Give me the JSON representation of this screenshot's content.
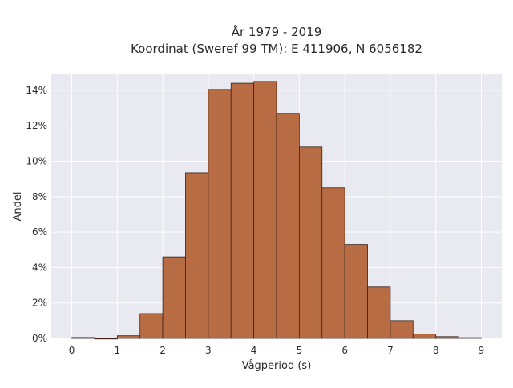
{
  "chart_data": {
    "type": "bar",
    "title": "År 1979 - 2019",
    "subtitle": "Koordinat (Sweref 99 TM): E 411906, N 6056182",
    "xlabel": "Vågperiod (s)",
    "ylabel": "Andel",
    "bin_width": 0.5,
    "bins_start": [
      0,
      0.5,
      1,
      1.5,
      2,
      2.5,
      3,
      3.5,
      4,
      4.5,
      5,
      5.5,
      6,
      6.5,
      7,
      7.5,
      8,
      8.5
    ],
    "values": [
      0.05,
      0,
      0.15,
      1.4,
      4.6,
      9.35,
      14.05,
      14.4,
      14.5,
      12.7,
      10.8,
      8.5,
      5.3,
      2.9,
      1.0,
      0.25,
      0.1,
      0.04
    ],
    "xticks": [
      "0",
      "1",
      "2",
      "3",
      "4",
      "5",
      "6",
      "7",
      "8",
      "9"
    ],
    "yticks": [
      "0%",
      "2%",
      "4%",
      "6%",
      "8%",
      "10%",
      "12%",
      "14%"
    ],
    "xlim": [
      -0.45,
      9.45
    ],
    "ylim": [
      0,
      14.9
    ],
    "grid": true,
    "colors": {
      "bar_fill": "#b86c44",
      "bar_stroke": "#3d2216",
      "plot_bg": "#e9e9f1",
      "grid": "#ffffff"
    }
  }
}
